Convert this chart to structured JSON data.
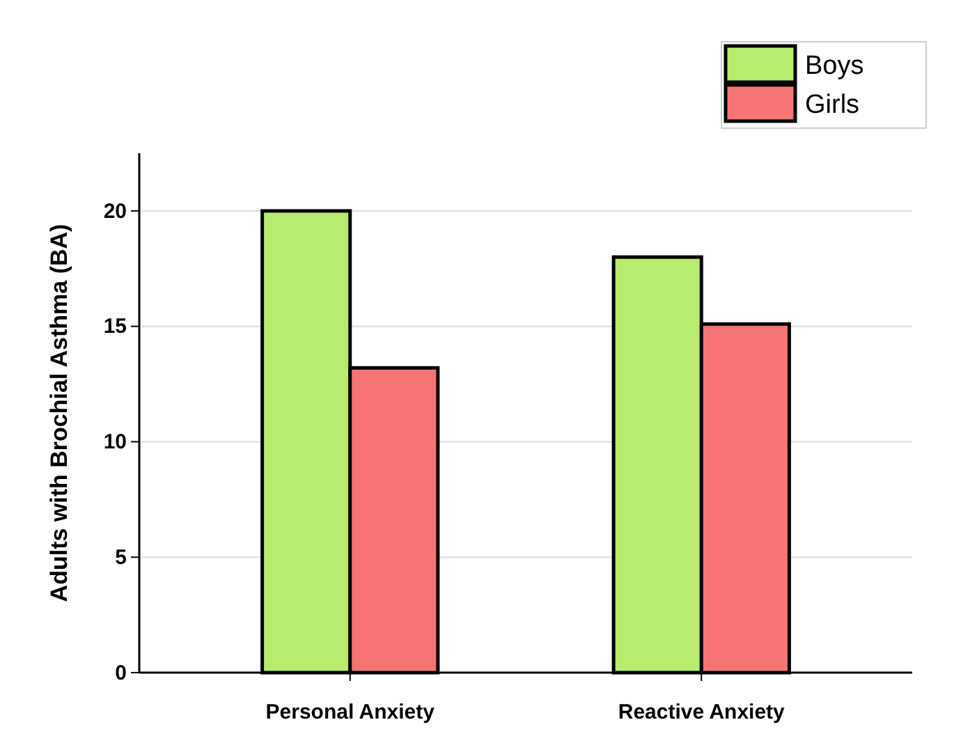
{
  "chart_data": {
    "type": "bar",
    "ylabel": "Adults with Brochial Asthma (BA)",
    "categories": [
      "Personal Anxiety",
      "Reactive Anxiety"
    ],
    "series": [
      {
        "name": "Boys",
        "color": "#b9ec6c",
        "values": [
          20,
          18
        ]
      },
      {
        "name": "Girls",
        "color": "#f87474",
        "values": [
          13.2,
          15.1
        ]
      }
    ],
    "ylim": [
      0,
      22.5
    ],
    "yticks": [
      0,
      5,
      10,
      15,
      20
    ],
    "grid": "y",
    "legend": "top right"
  }
}
